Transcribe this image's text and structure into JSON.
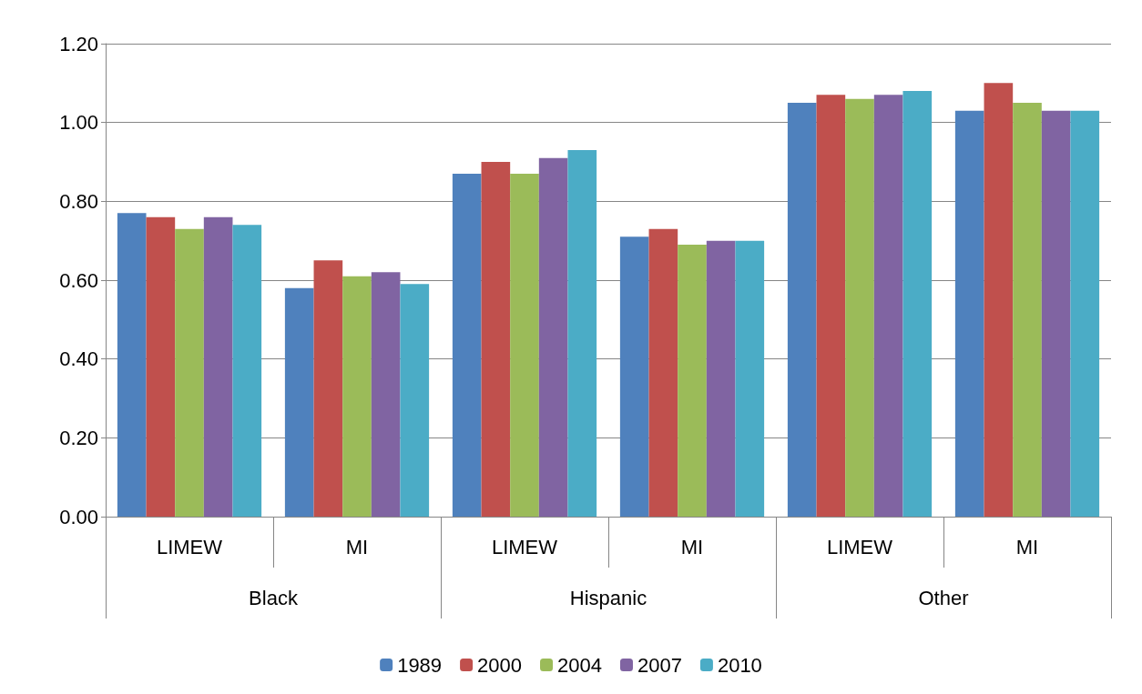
{
  "chart_data": {
    "type": "bar",
    "categories": [
      "LIMEW",
      "MI",
      "LIMEW",
      "MI",
      "LIMEW",
      "MI"
    ],
    "annotations": [
      "Black",
      "Hispanic",
      "Other"
    ],
    "series": [
      {
        "name": "1989",
        "color": "#4f81bd",
        "values": [
          0.77,
          0.58,
          0.87,
          0.71,
          1.05,
          1.03
        ]
      },
      {
        "name": "2000",
        "color": "#c0504d",
        "values": [
          0.76,
          0.65,
          0.9,
          0.73,
          1.07,
          1.1
        ]
      },
      {
        "name": "2004",
        "color": "#9bbb59",
        "values": [
          0.73,
          0.61,
          0.87,
          0.69,
          1.06,
          1.05
        ]
      },
      {
        "name": "2007",
        "color": "#8064a2",
        "values": [
          0.76,
          0.62,
          0.91,
          0.7,
          1.07,
          1.03
        ]
      },
      {
        "name": "2010",
        "color": "#4bacc6",
        "values": [
          0.74,
          0.59,
          0.93,
          0.7,
          1.08,
          1.03
        ]
      }
    ],
    "ylim": [
      0,
      1.2
    ],
    "yticks": [
      {
        "value": 0,
        "label": "0.00"
      },
      {
        "value": 0.2,
        "label": "0.20"
      },
      {
        "value": 0.4,
        "label": "0.40"
      },
      {
        "value": 0.6,
        "label": "0.60"
      },
      {
        "value": 0.8,
        "label": "0.80"
      },
      {
        "value": 1.0,
        "label": "1.00"
      },
      {
        "value": 1.2,
        "label": "1.20"
      }
    ],
    "grid": "y",
    "legend": "bottom"
  }
}
